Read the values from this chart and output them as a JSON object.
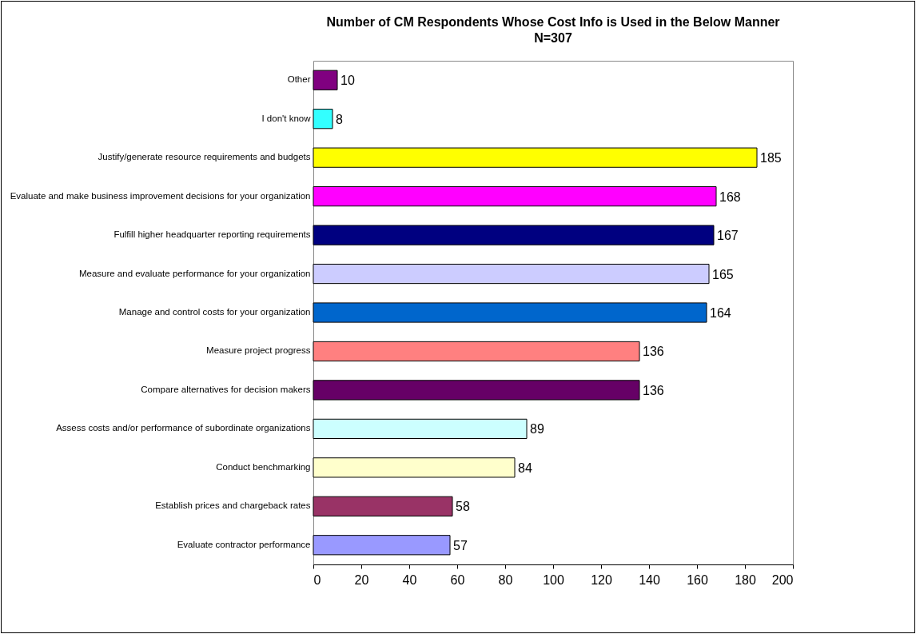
{
  "chart_data": {
    "type": "bar",
    "orientation": "horizontal",
    "title": "Number of CM Respondents Whose Cost Info is Used in the Below Manner",
    "subtitle": "N=307",
    "categories": [
      "Other",
      "I don't know",
      "Justify/generate resource requirements and budgets",
      "Evaluate and make business improvement decisions for your organization",
      "Fulfill higher headquarter reporting requirements",
      "Measure and evaluate performance for your organization",
      "Manage and control costs for your organization",
      "Measure project progress",
      "Compare alternatives for decision makers",
      "Assess costs and/or performance of subordinate organizations",
      "Conduct benchmarking",
      "Establish prices and chargeback rates",
      "Evaluate contractor performance"
    ],
    "values": [
      10,
      8,
      185,
      168,
      167,
      165,
      164,
      136,
      136,
      89,
      84,
      58,
      57
    ],
    "colors": [
      "#800080",
      "#33ffff",
      "#ffff00",
      "#ff00ff",
      "#000080",
      "#ccccff",
      "#0066cc",
      "#ff8080",
      "#660066",
      "#ccffff",
      "#ffffcc",
      "#993366",
      "#9999ff"
    ],
    "xlim": [
      0,
      200
    ],
    "xticks": [
      0,
      20,
      40,
      60,
      80,
      100,
      120,
      140,
      160,
      180,
      200
    ],
    "data_labels": true,
    "grid": false
  }
}
